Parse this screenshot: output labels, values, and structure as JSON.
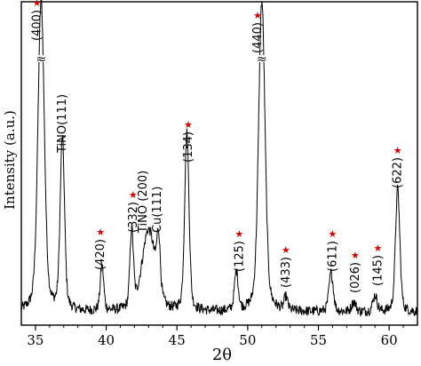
{
  "chart_data": {
    "type": "line",
    "title": "",
    "xlabel": "2θ",
    "ylabel": "Intensity (a.u.)",
    "xlim": [
      34,
      62
    ],
    "ylim": [
      0,
      100
    ],
    "x_ticks": [
      35,
      40,
      45,
      50,
      55,
      60
    ],
    "x_tick_labels": [
      "35",
      "40",
      "45",
      "50",
      "55",
      "60"
    ],
    "y_ticks_shown": false,
    "grid": false,
    "baseline": 4,
    "peaks": [
      {
        "x": 35.4,
        "height": 96,
        "width": 0.22,
        "broken": true,
        "label": "(400)",
        "star": true
      },
      {
        "x": 36.9,
        "height": 53,
        "width": 0.15,
        "label": "TiNO(111)",
        "star": false
      },
      {
        "x": 39.7,
        "height": 14,
        "width": 0.12,
        "label": "(420)",
        "star": true
      },
      {
        "x": 41.8,
        "height": 24,
        "width": 0.12,
        "label": "(332)",
        "star": true
      },
      {
        "x": 43.0,
        "height": 25,
        "width": 0.45,
        "label": "TiNO (200)",
        "star": false
      },
      {
        "x": 43.7,
        "height": 17,
        "width": 0.12,
        "label": "Cu(111)",
        "star": false
      },
      {
        "x": 45.7,
        "height": 55,
        "width": 0.15,
        "label": "(134)",
        "star": true
      },
      {
        "x": 49.2,
        "height": 12,
        "width": 0.13,
        "label": "(125)",
        "star": true
      },
      {
        "x": 51.0,
        "height": 96,
        "width": 0.22,
        "broken": true,
        "label": "(440)",
        "star": true
      },
      {
        "x": 52.7,
        "height": 4,
        "width": 0.12,
        "label": "(433)",
        "star": true
      },
      {
        "x": 55.9,
        "height": 12,
        "width": 0.15,
        "label": "(611)",
        "star": true
      },
      {
        "x": 57.5,
        "height": 3,
        "width": 0.15,
        "label": "(026)",
        "star": true
      },
      {
        "x": 59.0,
        "height": 5,
        "width": 0.15,
        "label": "(145)",
        "star": true
      },
      {
        "x": 60.6,
        "height": 38,
        "width": 0.15,
        "label": "(622)",
        "star": true
      }
    ],
    "star_color": "#d40000",
    "break_symbol": "≈"
  }
}
